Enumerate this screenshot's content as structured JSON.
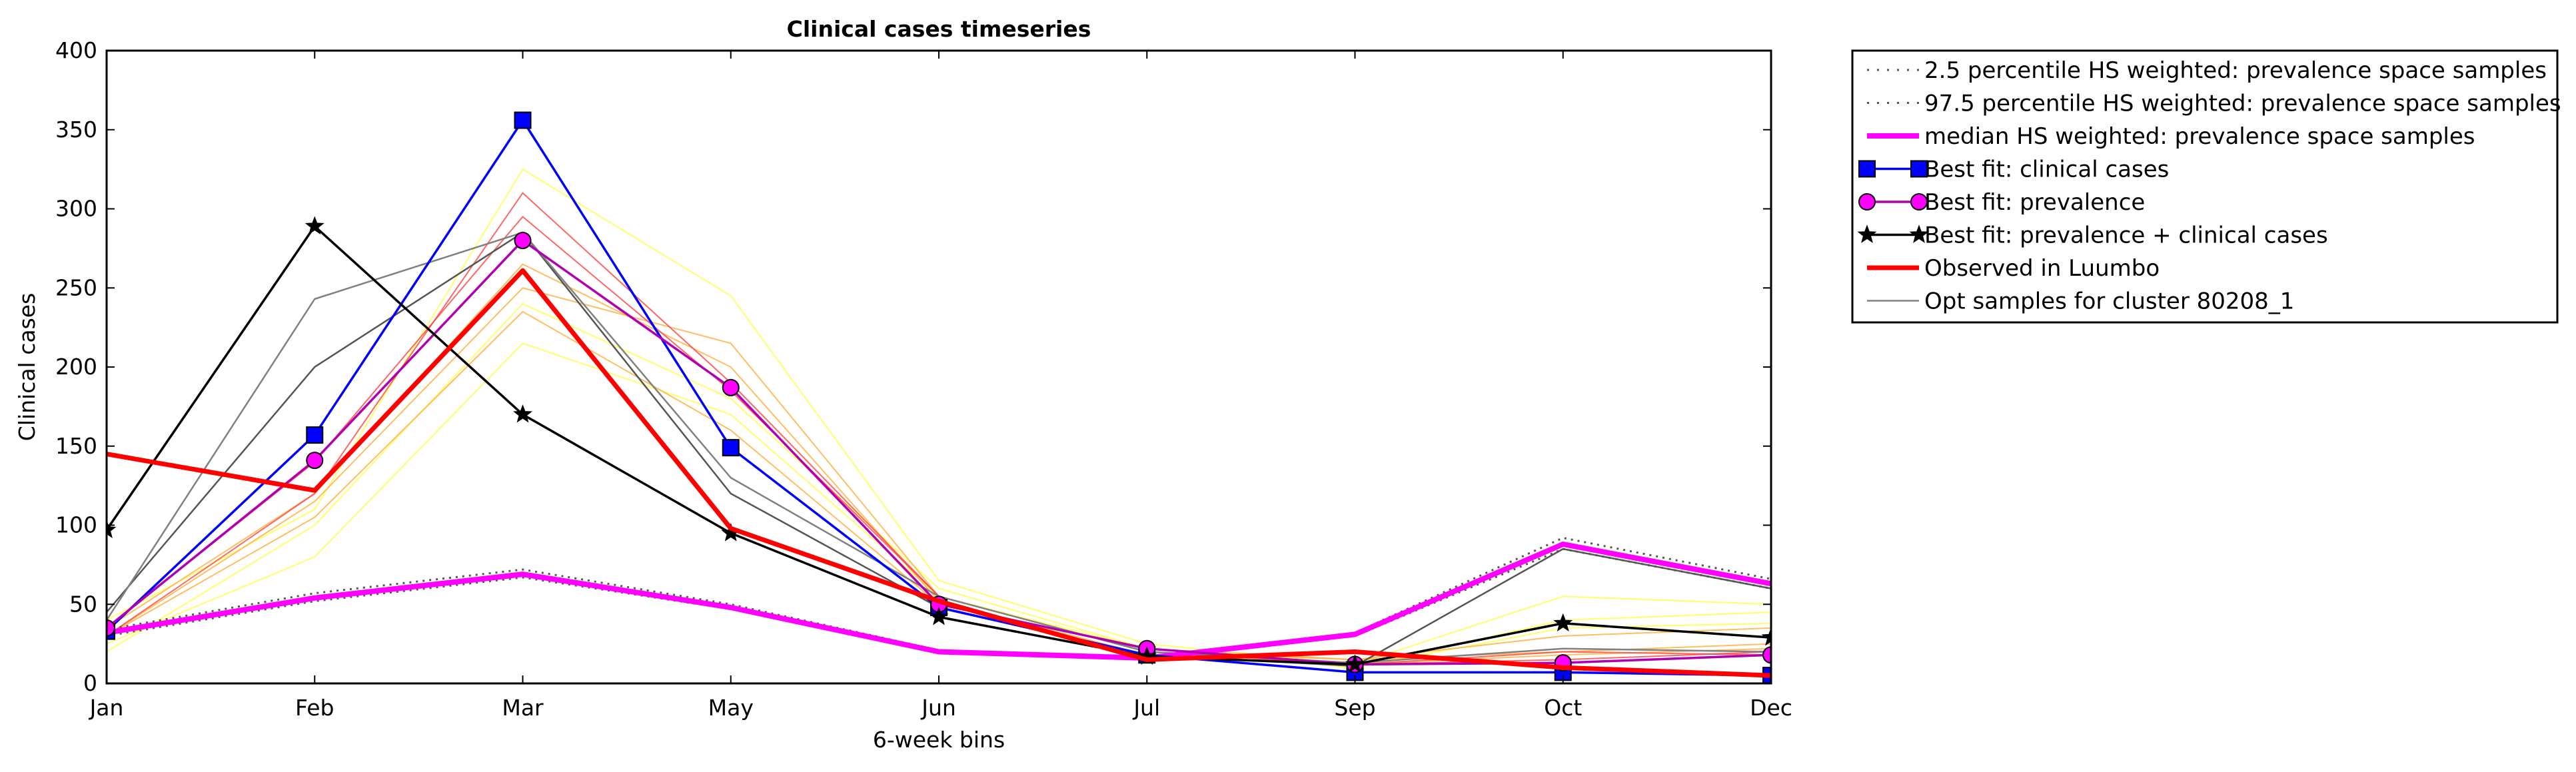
{
  "chart_data": {
    "type": "line",
    "title": "Clinical cases timeseries",
    "xlabel": "6-week bins",
    "ylabel": "Clinical cases",
    "categories": [
      "Jan",
      "Feb",
      "Mar",
      "May",
      "Jun",
      "Jul",
      "Sep",
      "Oct",
      "Dec"
    ],
    "ylim": [
      0,
      400
    ],
    "yticks": [
      0,
      50,
      100,
      150,
      200,
      250,
      300,
      350,
      400
    ],
    "grid": false,
    "legend_position": "outside-right",
    "background_samples": {
      "yellow_color": "#ffff55",
      "orange_color": "#ffb347",
      "red_color": "#ff4040",
      "gray_color": "#555555",
      "yellow": [
        [
          40,
          110,
          325,
          245,
          65,
          25,
          12,
          55,
          50
        ],
        [
          25,
          80,
          215,
          170,
          55,
          22,
          10,
          40,
          45
        ],
        [
          20,
          100,
          240,
          180,
          60,
          22,
          10,
          35,
          38
        ]
      ],
      "orange": [
        [
          30,
          115,
          250,
          215,
          55,
          20,
          15,
          20,
          25
        ],
        [
          35,
          120,
          265,
          200,
          52,
          18,
          12,
          18,
          22
        ],
        [
          30,
          105,
          235,
          160,
          50,
          22,
          15,
          30,
          35
        ]
      ],
      "red": [
        [
          30,
          120,
          310,
          190,
          55,
          20,
          12,
          15,
          20
        ],
        [
          35,
          140,
          295,
          185,
          55,
          20,
          12,
          20,
          18
        ]
      ]
    },
    "series": [
      {
        "name": "2.5 percentile HS weighted: prevalence space samples",
        "color": "#555555",
        "style": "dotted",
        "width": 3,
        "values": [
          30,
          52,
          67,
          47,
          20,
          16,
          30,
          85,
          60
        ]
      },
      {
        "name": "97.5 percentile HS weighted: prevalence space samples",
        "color": "#555555",
        "style": "dotted",
        "width": 3,
        "values": [
          34,
          57,
          72,
          50,
          21,
          16,
          32,
          92,
          66
        ]
      },
      {
        "name": "median HS weighted: prevalence space samples",
        "color": "#ff00ff",
        "style": "solid",
        "width": 8,
        "values": [
          32,
          54,
          69,
          48,
          20,
          16,
          31,
          88,
          63
        ]
      },
      {
        "name": "Best fit: clinical cases",
        "color": "#0000ff",
        "style": "solid",
        "width": 3.5,
        "marker": "square",
        "values": [
          33,
          157,
          356,
          149,
          48,
          18,
          7,
          7,
          5
        ]
      },
      {
        "name": "Best fit: prevalence",
        "color": "#b000b0",
        "style": "solid",
        "width": 3.5,
        "marker": "circle",
        "marker_color": "#ff00ff",
        "values": [
          35,
          141,
          280,
          187,
          50,
          22,
          12,
          13,
          18
        ]
      },
      {
        "name": "Best fit: prevalence + clinical cases",
        "color": "#000000",
        "style": "solid",
        "width": 3.5,
        "marker": "star",
        "values": [
          97,
          289,
          170,
          95,
          42,
          17,
          12,
          38,
          29
        ]
      },
      {
        "name": "Observed in Luumbo",
        "color": "#ff0000",
        "style": "solid",
        "width": 7,
        "values": [
          145,
          122,
          261,
          98,
          52,
          15,
          20,
          10,
          5
        ]
      },
      {
        "name": "Opt samples for cluster 80208_1",
        "color": "#808080",
        "style": "solid",
        "width": 2.5,
        "values": [
          40,
          243,
          285,
          130,
          55,
          20,
          13,
          22,
          20
        ]
      }
    ],
    "extra_gray_samples": [
      [
        45,
        200,
        285,
        120,
        48,
        18,
        11,
        85,
        60
      ]
    ]
  }
}
